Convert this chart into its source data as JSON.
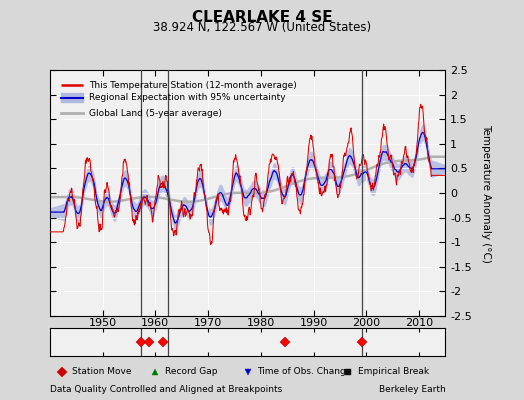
{
  "title": "CLEARLAKE 4 SE",
  "subtitle": "38.924 N, 122.567 W (United States)",
  "ylabel": "Temperature Anomaly (°C)",
  "ylim": [
    -2.5,
    2.5
  ],
  "yticks": [
    -2.5,
    -2,
    -1.5,
    -1,
    -0.5,
    0,
    0.5,
    1,
    1.5,
    2,
    2.5
  ],
  "xlim": [
    1940,
    2015
  ],
  "xticks": [
    1950,
    1960,
    1970,
    1980,
    1990,
    2000,
    2010
  ],
  "xlabel_bottom": "Data Quality Controlled and Aligned at Breakpoints",
  "xlabel_bottomright": "Berkeley Earth",
  "bg_color": "#d8d8d8",
  "plot_bg_color": "#f0f0f0",
  "station_color": "#dd0000",
  "regional_color": "#0000cc",
  "regional_uncertainty_color": "#b0b8e0",
  "global_color": "#b0b0b0",
  "legend_entries": [
    "This Temperature Station (12-month average)",
    "Regional Expectation with 95% uncertainty",
    "Global Land (5-year average)"
  ],
  "station_move_years": [
    1957.3,
    1958.8,
    1961.5,
    1984.5,
    1999.2
  ],
  "record_gap_years": [],
  "time_obs_years": [],
  "empirical_break_years": [],
  "vertical_lines_color": "#444444",
  "vertical_lines": [
    1957.3,
    1962.5,
    1999.2
  ],
  "seed": 17
}
